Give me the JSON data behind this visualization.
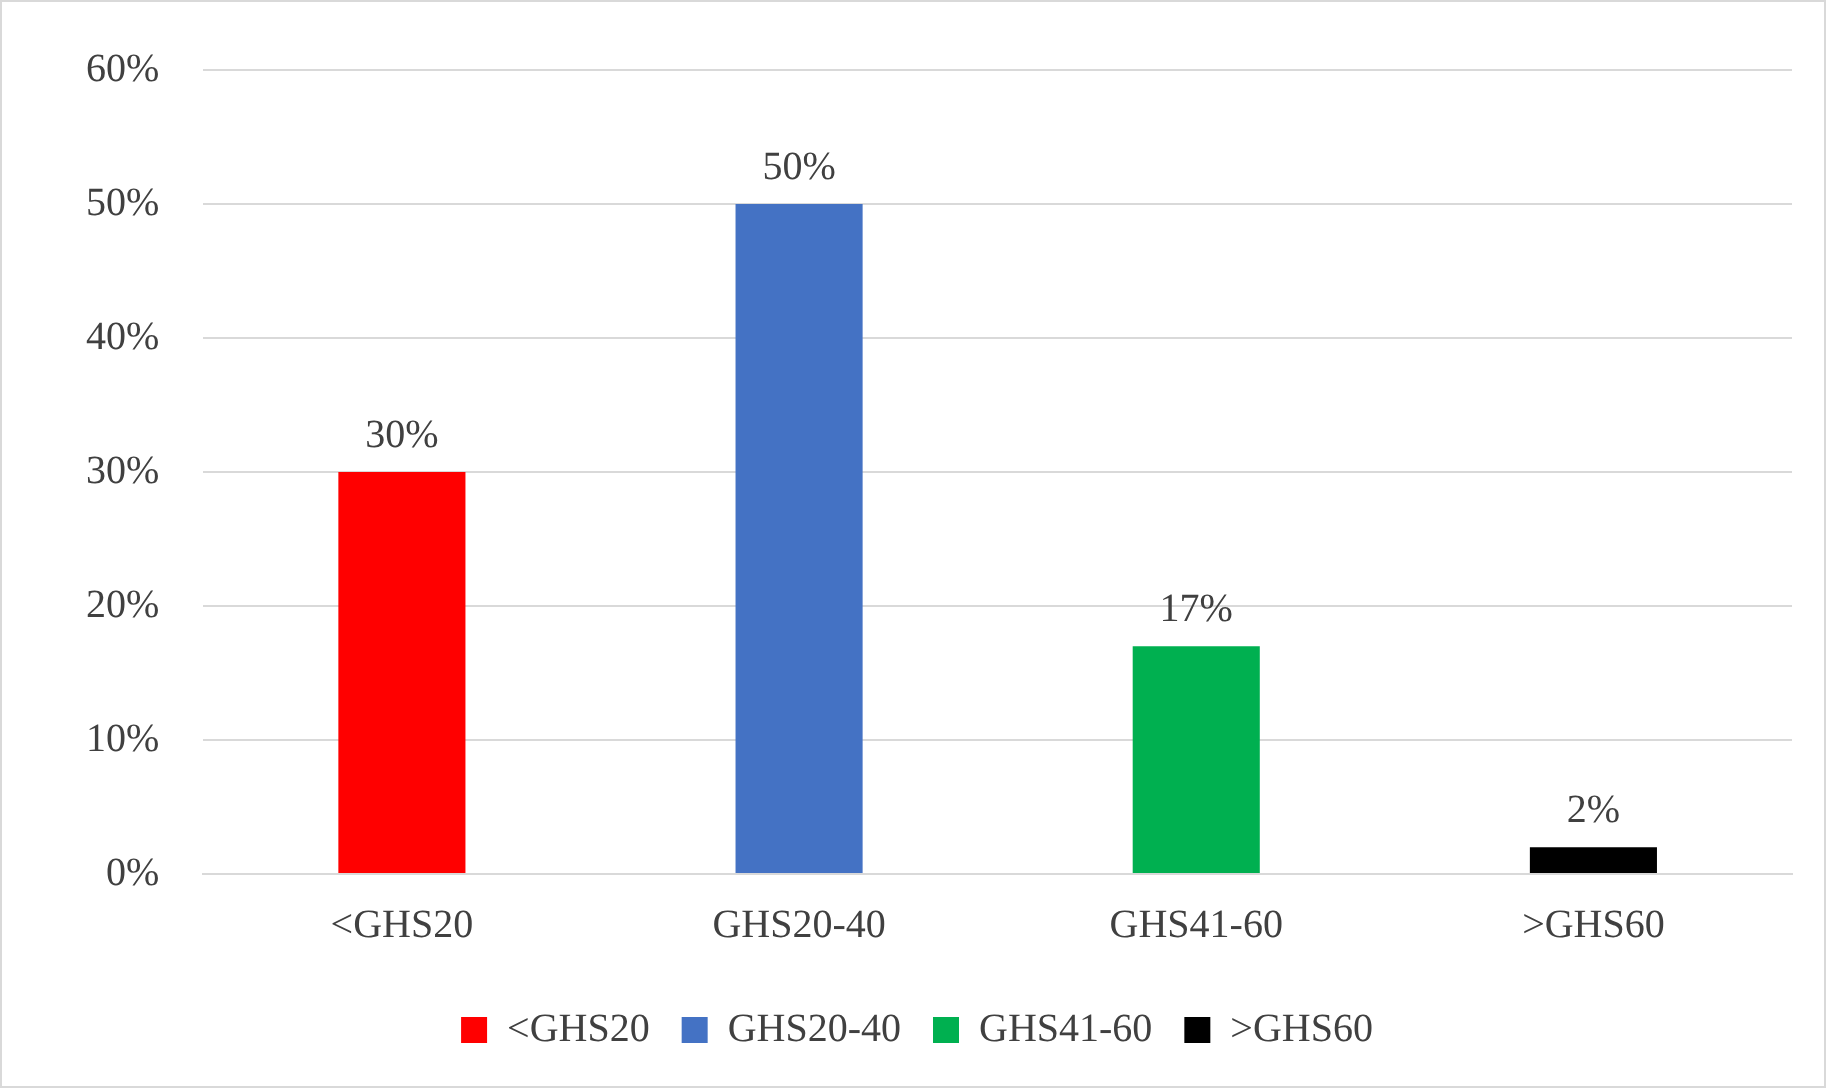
{
  "chart_data": {
    "type": "bar",
    "categories": [
      "<GHS20",
      "GHS20-40",
      "GHS41-60",
      ">GHS60"
    ],
    "series": [
      {
        "name": "<GHS20",
        "color": "#ff0000",
        "values": [
          30,
          null,
          null,
          null
        ],
        "value_labels": [
          "30%",
          null,
          null,
          null
        ]
      },
      {
        "name": "GHS20-40",
        "color": "#4472c4",
        "values": [
          null,
          50,
          null,
          null
        ],
        "value_labels": [
          null,
          "50%",
          null,
          null
        ]
      },
      {
        "name": "GHS41-60",
        "color": "#00b050",
        "values": [
          null,
          null,
          17,
          null
        ],
        "value_labels": [
          null,
          null,
          "17%",
          null
        ]
      },
      {
        "name": ">GHS60",
        "color": "#000000",
        "values": [
          null,
          null,
          null,
          2
        ],
        "value_labels": [
          null,
          null,
          null,
          "2%"
        ]
      }
    ],
    "ylim": [
      0,
      60
    ],
    "yticks": [
      {
        "value": 0,
        "label": "0%"
      },
      {
        "value": 10,
        "label": "10%"
      },
      {
        "value": 20,
        "label": "20%"
      },
      {
        "value": 30,
        "label": "30%"
      },
      {
        "value": 40,
        "label": "40%"
      },
      {
        "value": 50,
        "label": "50%"
      },
      {
        "value": 60,
        "label": "60%"
      }
    ],
    "grid": "y",
    "legend": "bottom"
  }
}
